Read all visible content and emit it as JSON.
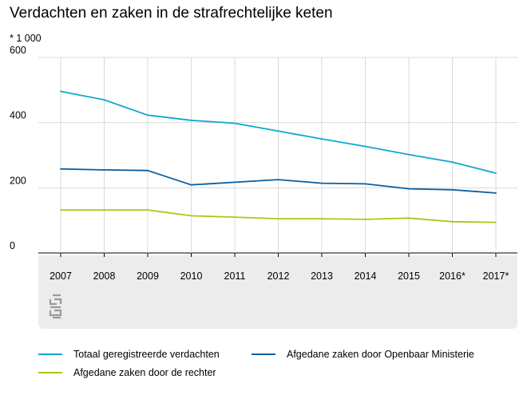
{
  "chart_data": {
    "type": "line",
    "title": "Verdachten en zaken in de strafrechtelijke keten",
    "unit": "* 1 000",
    "categories": [
      "2007",
      "2008",
      "2009",
      "2010",
      "2011",
      "2012",
      "2013",
      "2014",
      "2015",
      "2016*",
      "2017*"
    ],
    "ylim": [
      0,
      600
    ],
    "yticks": [
      "0",
      "200",
      "400",
      "600"
    ],
    "grid": true,
    "legend_position": "bottom",
    "logo": "cbs",
    "series": [
      {
        "name": "Totaal geregistreerde verdachten",
        "color": "#12a5cf",
        "values": [
          496,
          470,
          423,
          407,
          398,
          374,
          350,
          327,
          302,
          279,
          245
        ]
      },
      {
        "name": "Afgedane zaken door Openbaar Ministerie",
        "color": "#0a5d9e",
        "values": [
          258,
          255,
          253,
          209,
          217,
          225,
          214,
          212,
          197,
          194,
          184
        ]
      },
      {
        "name": "Afgedane zaken door de rechter",
        "color": "#a8c817",
        "values": [
          132,
          132,
          132,
          114,
          110,
          105,
          105,
          103,
          107,
          96,
          94
        ]
      }
    ]
  }
}
